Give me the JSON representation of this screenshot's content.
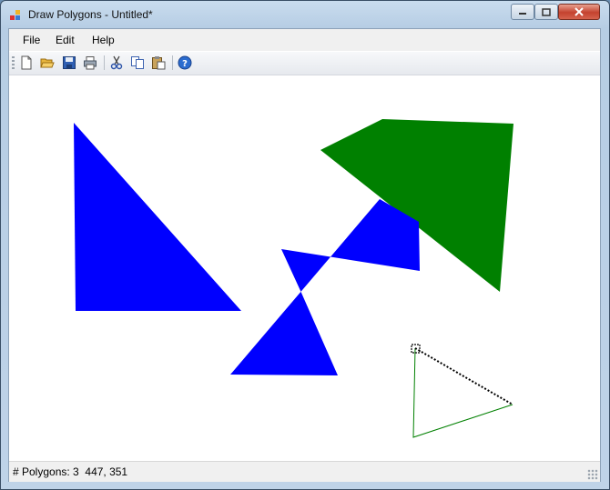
{
  "window": {
    "title": "Draw Polygons - Untitled*"
  },
  "menu": {
    "items": [
      "File",
      "Edit",
      "Help"
    ]
  },
  "toolbar": {
    "icons": [
      "new-file-icon",
      "open-folder-icon",
      "save-icon",
      "print-icon",
      "cut-icon",
      "copy-icon",
      "paste-icon",
      "help-icon"
    ]
  },
  "canvas": {
    "polygons": [
      {
        "color": "#0000ff",
        "label": "blue-triangle"
      },
      {
        "color": "#008000",
        "label": "green-polygon"
      },
      {
        "color": "#0000ff",
        "label": "blue-bowtie"
      }
    ],
    "in_progress": {
      "color": "#008000"
    }
  },
  "status": {
    "polygon_count_label": "# Polygons: 3",
    "cursor_coords": "447, 351"
  }
}
